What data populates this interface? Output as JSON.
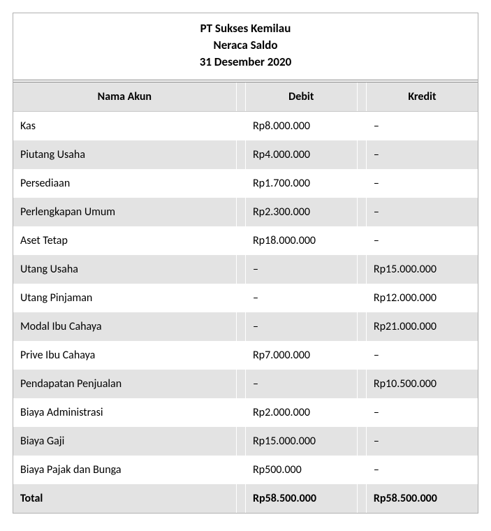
{
  "header": {
    "company": "PT Sukses Kemilau",
    "report": "Neraca Saldo",
    "date": "31 Desember 2020"
  },
  "table": {
    "type": "table",
    "columns": [
      "Nama Akun",
      "Debit",
      "Kredit"
    ],
    "dash": "–",
    "rows": [
      {
        "name": "Kas",
        "debit": "Rp8.000.000",
        "kredit": "–"
      },
      {
        "name": "Piutang Usaha",
        "debit": "Rp4.000.000",
        "kredit": "–"
      },
      {
        "name": "Persediaan",
        "debit": "Rp1.700.000",
        "kredit": "–"
      },
      {
        "name": "Perlengkapan Umum",
        "debit": "Rp2.300.000",
        "kredit": "–"
      },
      {
        "name": "Aset Tetap",
        "debit": "Rp18.000.000",
        "kredit": "–"
      },
      {
        "name": "Utang Usaha",
        "debit": "–",
        "kredit": "Rp15.000.000"
      },
      {
        "name": "Utang Pinjaman",
        "debit": "–",
        "kredit": "Rp12.000.000"
      },
      {
        "name": "Modal Ibu Cahaya",
        "debit": "–",
        "kredit": "Rp21.000.000"
      },
      {
        "name": "Prive Ibu Cahaya",
        "debit": "Rp7.000.000",
        "kredit": "–"
      },
      {
        "name": "Pendapatan Penjualan",
        "debit": "–",
        "kredit": "Rp10.500.000"
      },
      {
        "name": "Biaya Administrasi",
        "debit": "Rp2.000.000",
        "kredit": "–"
      },
      {
        "name": "Biaya Gaji",
        "debit": "Rp15.000.000",
        "kredit": "–"
      },
      {
        "name": "Biaya Pajak dan Bunga",
        "debit": "Rp500.000",
        "kredit": "–"
      }
    ],
    "total": {
      "label": "Total",
      "debit": "Rp58.500.000",
      "kredit": "Rp58.500.000"
    },
    "style": {
      "header_bg": "#e3e3e3",
      "stripe_bg": "#e3e3e3",
      "row_bg": "#ffffff",
      "border": "#b0b0b0",
      "font_size_pt": 12,
      "header_weight": 600,
      "total_weight": 700
    }
  }
}
